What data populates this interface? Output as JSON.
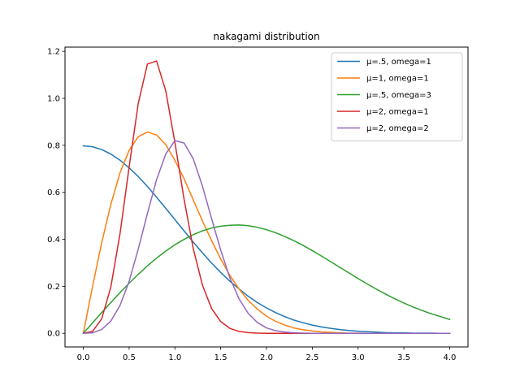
{
  "chart_data": {
    "type": "line",
    "title": "nakagami distribution",
    "xlabel": "",
    "ylabel": "",
    "xlim": [
      -0.2,
      4.2
    ],
    "ylim": [
      -0.058,
      1.218
    ],
    "xticks": [
      0.0,
      0.5,
      1.0,
      1.5,
      2.0,
      2.5,
      3.0,
      3.5,
      4.0
    ],
    "xtick_labels": [
      "0.0",
      "0.5",
      "1.0",
      "1.5",
      "2.0",
      "2.5",
      "3.0",
      "3.5",
      "4.0"
    ],
    "yticks": [
      0.0,
      0.2,
      0.4,
      0.6,
      0.8,
      1.0,
      1.2
    ],
    "ytick_labels": [
      "0.0",
      "0.2",
      "0.4",
      "0.6",
      "0.8",
      "1.0",
      "1.2"
    ],
    "grid": false,
    "legend_position": "top-right",
    "x": [
      0.0,
      0.1,
      0.2,
      0.3,
      0.4,
      0.5,
      0.6,
      0.7,
      0.8,
      0.9,
      1.0,
      1.1,
      1.2,
      1.3,
      1.4,
      1.5,
      1.6,
      1.7,
      1.8,
      1.9,
      2.0,
      2.1,
      2.2,
      2.3,
      2.4,
      2.5,
      2.6,
      2.7,
      2.8,
      2.9,
      3.0,
      3.1,
      3.2,
      3.3,
      3.4,
      3.5,
      3.6,
      3.7,
      3.8,
      3.9,
      4.0
    ],
    "series": [
      {
        "name": "μ=.5, omega=1",
        "color": "#1f77b4",
        "values": [
          0.798,
          0.794,
          0.782,
          0.763,
          0.737,
          0.704,
          0.667,
          0.625,
          0.579,
          0.532,
          0.484,
          0.436,
          0.388,
          0.343,
          0.299,
          0.259,
          0.222,
          0.189,
          0.158,
          0.131,
          0.108,
          0.088,
          0.071,
          0.056,
          0.045,
          0.035,
          0.027,
          0.021,
          0.016,
          0.012,
          0.009,
          0.007,
          0.005,
          0.003,
          0.002,
          0.002,
          0.001,
          0.001,
          0.001,
          0.0,
          0.0
        ]
      },
      {
        "name": "μ=1, omega=1",
        "color": "#ff7f0e",
        "values": [
          0.0,
          0.198,
          0.384,
          0.548,
          0.682,
          0.779,
          0.837,
          0.857,
          0.844,
          0.803,
          0.736,
          0.658,
          0.568,
          0.479,
          0.395,
          0.316,
          0.247,
          0.189,
          0.14,
          0.103,
          0.073,
          0.051,
          0.035,
          0.023,
          0.015,
          0.01,
          0.006,
          0.004,
          0.002,
          0.001,
          0.001,
          0.0,
          0.0,
          0.0,
          0.0,
          0.0,
          0.0,
          0.0,
          0.0,
          0.0,
          0.0
        ]
      },
      {
        "name": "μ=.5, omega=3",
        "color": "#2ca02c",
        "values": [
          0.0,
          0.044,
          0.088,
          0.131,
          0.173,
          0.213,
          0.251,
          0.287,
          0.32,
          0.35,
          0.377,
          0.4,
          0.42,
          0.436,
          0.448,
          0.456,
          0.46,
          0.461,
          0.458,
          0.451,
          0.441,
          0.428,
          0.412,
          0.394,
          0.374,
          0.352,
          0.329,
          0.305,
          0.281,
          0.257,
          0.233,
          0.21,
          0.188,
          0.167,
          0.147,
          0.129,
          0.112,
          0.097,
          0.083,
          0.071,
          0.059
        ]
      },
      {
        "name": "μ=2, omega=1",
        "color": "#d62728",
        "values": [
          0.0,
          0.008,
          0.061,
          0.196,
          0.422,
          0.707,
          0.979,
          1.146,
          1.159,
          1.032,
          0.812,
          0.571,
          0.361,
          0.206,
          0.106,
          0.05,
          0.021,
          0.008,
          0.003,
          0.001,
          0.0,
          0.0,
          0.0,
          0.0,
          0.0,
          0.0,
          0.0,
          0.0,
          0.0,
          0.0,
          0.0,
          0.0,
          0.0,
          0.0,
          0.0,
          0.0,
          0.0,
          0.0,
          0.0,
          0.0,
          0.0
        ]
      },
      {
        "name": "μ=2, omega=2",
        "color": "#9467bd",
        "values": [
          0.0,
          0.002,
          0.016,
          0.052,
          0.118,
          0.221,
          0.359,
          0.51,
          0.654,
          0.763,
          0.82,
          0.81,
          0.743,
          0.627,
          0.489,
          0.354,
          0.236,
          0.147,
          0.085,
          0.046,
          0.023,
          0.011,
          0.005,
          0.002,
          0.001,
          0.0,
          0.0,
          0.0,
          0.0,
          0.0,
          0.0,
          0.0,
          0.0,
          0.0,
          0.0,
          0.0,
          0.0,
          0.0,
          0.0,
          0.0,
          0.0
        ]
      }
    ]
  }
}
